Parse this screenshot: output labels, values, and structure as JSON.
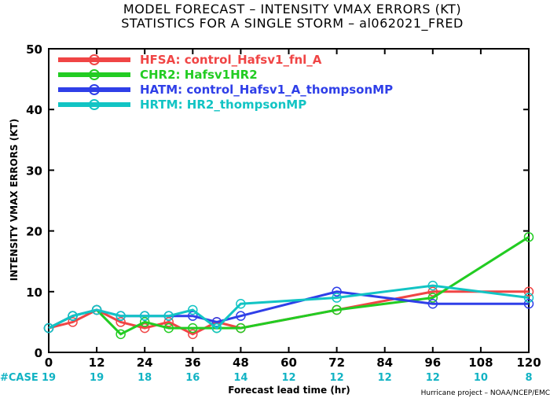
{
  "chart_data": {
    "type": "line",
    "title": "MODEL FORECAST – INTENSITY VMAX ERRORS (KT)",
    "subtitle": "STATISTICS FOR A SINGLE STORM – al062021_FRED",
    "xlabel": "Forecast lead time (hr)",
    "ylabel": "INTENSITY VMAX ERRORS (KT)",
    "xlim": [
      0,
      120
    ],
    "ylim": [
      0,
      50
    ],
    "x_ticks": [
      0,
      12,
      24,
      36,
      48,
      60,
      72,
      84,
      96,
      108,
      120
    ],
    "y_ticks": [
      0,
      10,
      20,
      30,
      40,
      50
    ],
    "grid": false,
    "legend_position": "top-left",
    "series": [
      {
        "name": "HFSA: control_Hafsv1_fnl_A",
        "color": "#f04545",
        "x": [
          0,
          6,
          12,
          18,
          24,
          30,
          36,
          42,
          48,
          72,
          96,
          120
        ],
        "y": [
          4,
          5,
          7,
          5,
          4,
          5,
          3,
          5,
          4,
          7,
          10,
          10
        ]
      },
      {
        "name": "CHR2: Hafsv1HR2",
        "color": "#22cc22",
        "x": [
          0,
          6,
          12,
          18,
          24,
          30,
          36,
          42,
          48,
          72,
          96,
          120
        ],
        "y": [
          4,
          6,
          7,
          3,
          5,
          4,
          4,
          4,
          4,
          7,
          9,
          19
        ]
      },
      {
        "name": "HATM: control_Hafsv1_A_thompsonMP",
        "color": "#2f3fe8",
        "x": [
          0,
          6,
          12,
          18,
          24,
          30,
          36,
          42,
          48,
          72,
          96,
          120
        ],
        "y": [
          4,
          6,
          7,
          6,
          6,
          6,
          6,
          5,
          6,
          10,
          8,
          8
        ]
      },
      {
        "name": "HRTM: HR2_thompsonMP",
        "color": "#12c4c4",
        "x": [
          0,
          6,
          12,
          18,
          24,
          30,
          36,
          42,
          48,
          72,
          96,
          120
        ],
        "y": [
          4,
          6,
          7,
          6,
          6,
          6,
          7,
          4,
          8,
          9,
          11,
          9
        ]
      }
    ],
    "case_label": "#CASE",
    "case_counts": [
      "19",
      "19",
      "18",
      "16",
      "14",
      "12",
      "12",
      "12",
      "12",
      "10",
      "8"
    ]
  },
  "credit": "Hurricane project – NOAA/NCEP/EMC"
}
